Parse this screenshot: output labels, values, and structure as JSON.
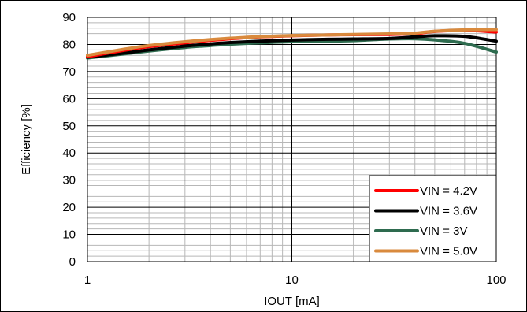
{
  "chart_data": {
    "type": "line",
    "xscale": "log",
    "xlabel": "IOUT [mA]",
    "ylabel": "Efficiency [%]",
    "xlim": [
      1,
      100
    ],
    "ylim": [
      0,
      90
    ],
    "x_ticks": [
      1,
      10,
      100
    ],
    "x_tick_labels": [
      "1",
      "10",
      "100"
    ],
    "y_ticks": [
      0,
      10,
      20,
      30,
      40,
      50,
      60,
      70,
      80,
      90
    ],
    "y_tick_labels": [
      "0",
      "10",
      "20",
      "30",
      "40",
      "50",
      "60",
      "70",
      "80",
      "90"
    ],
    "grid": true,
    "legend_position": "bottom-right",
    "series": [
      {
        "name": "VIN = 4.2V",
        "color": "#ff0000",
        "x": [
          1,
          1.5,
          2,
          3,
          4,
          5,
          7,
          10,
          15,
          20,
          30,
          40,
          50,
          70,
          100
        ],
        "y": [
          75.5,
          77.8,
          79.2,
          80.6,
          81.5,
          82.1,
          82.8,
          83.2,
          83.5,
          83.6,
          83.7,
          84.0,
          84.8,
          85.2,
          84.6
        ]
      },
      {
        "name": "VIN = 3.6V",
        "color": "#000000",
        "x": [
          1,
          1.5,
          2,
          3,
          4,
          5,
          7,
          10,
          15,
          20,
          30,
          40,
          50,
          70,
          100
        ],
        "y": [
          75.3,
          76.8,
          78.0,
          79.4,
          80.2,
          80.7,
          81.2,
          81.6,
          81.9,
          82.0,
          82.2,
          82.8,
          83.2,
          83.0,
          81.2
        ]
      },
      {
        "name": "VIN = 3V",
        "color": "#2e6b4f",
        "x": [
          1,
          1.5,
          2,
          3,
          4,
          5,
          7,
          10,
          15,
          20,
          30,
          40,
          50,
          70,
          100
        ],
        "y": [
          75.0,
          76.5,
          77.6,
          78.9,
          79.6,
          80.1,
          80.6,
          81.0,
          81.2,
          81.4,
          82.0,
          82.1,
          81.7,
          80.4,
          77.2
        ]
      },
      {
        "name": "VIN = 5.0V",
        "color": "#d98a3d",
        "x": [
          1,
          1.5,
          2,
          3,
          4,
          5,
          7,
          10,
          15,
          20,
          30,
          40,
          50,
          70,
          100
        ],
        "y": [
          76.0,
          78.2,
          79.6,
          81.0,
          81.8,
          82.3,
          82.9,
          83.3,
          83.5,
          83.7,
          83.9,
          84.2,
          84.9,
          85.4,
          85.5
        ]
      }
    ]
  }
}
